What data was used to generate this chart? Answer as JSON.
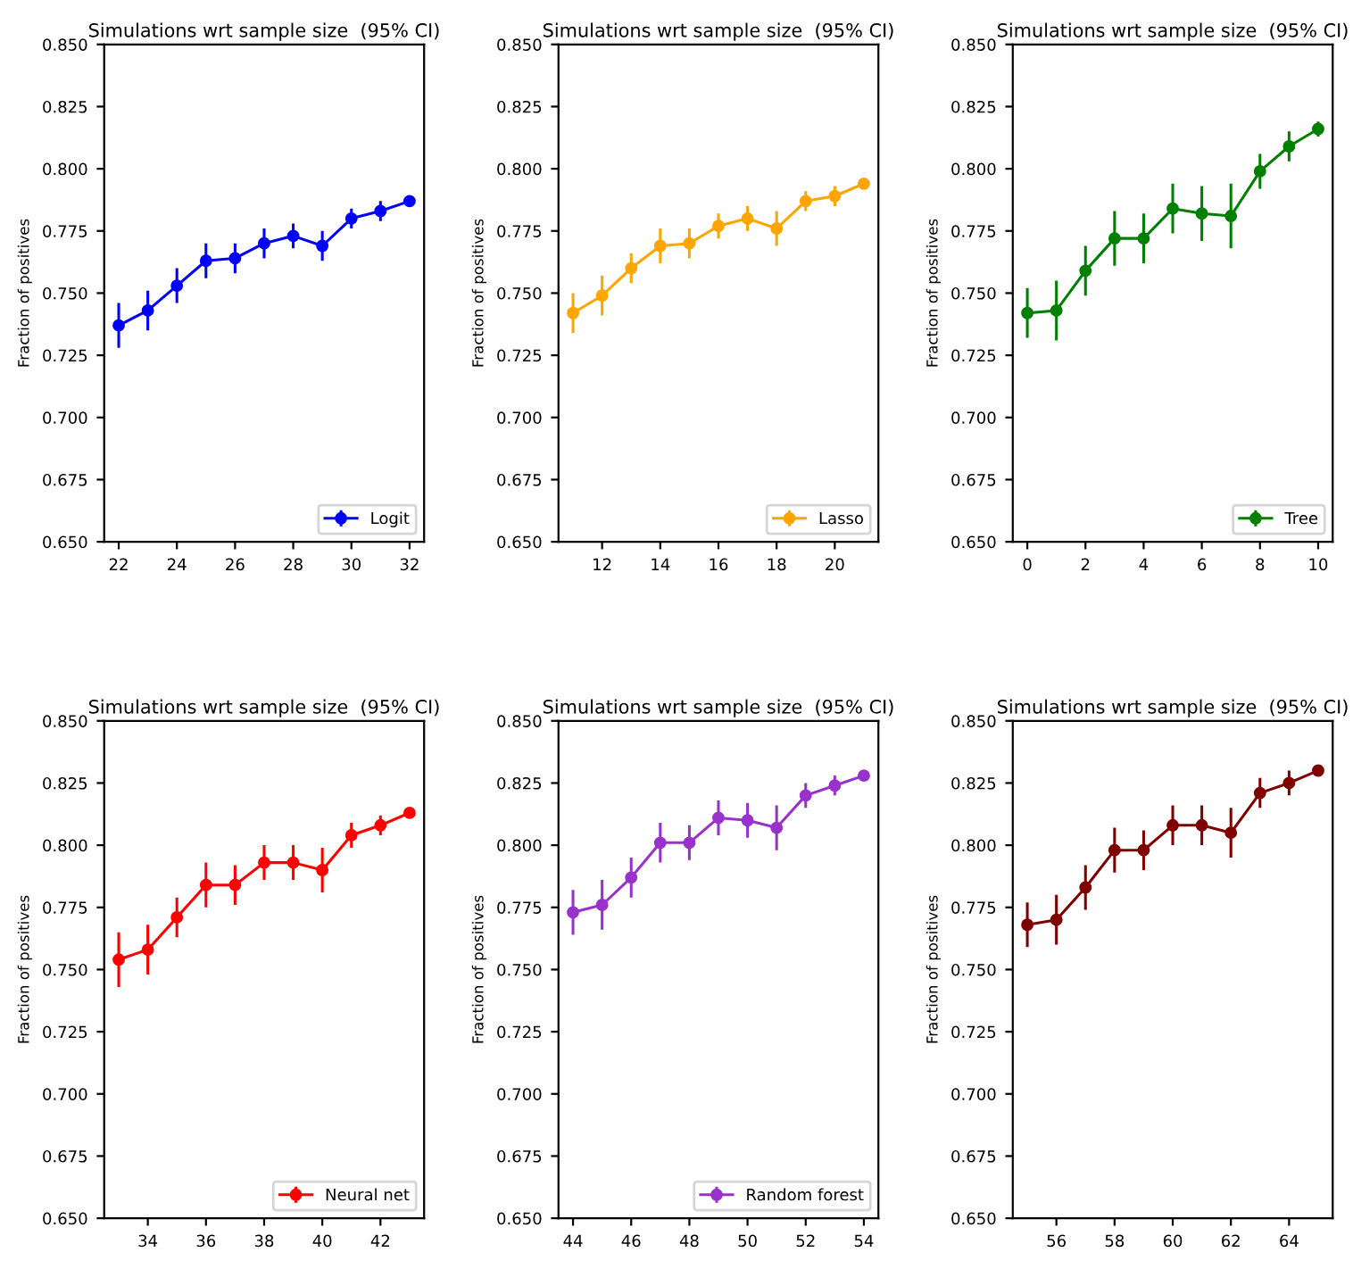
{
  "chart_data": [
    {
      "type": "line",
      "title": "Simulations wrt sample size  (95% CI)",
      "ylabel": "Fraction of positives",
      "x": [
        22,
        23,
        24,
        25,
        26,
        27,
        28,
        29,
        30,
        31,
        32
      ],
      "xlim": [
        21.5,
        32.5
      ],
      "xticks": [
        22,
        24,
        26,
        28,
        30,
        32
      ],
      "ylim": [
        0.65,
        0.85
      ],
      "yticks": [
        {
          "value": 0.65,
          "label": "0.650"
        },
        {
          "value": 0.675,
          "label": "0.675"
        },
        {
          "value": 0.7,
          "label": "0.700"
        },
        {
          "value": 0.725,
          "label": "0.725"
        },
        {
          "value": 0.75,
          "label": "0.750"
        },
        {
          "value": 0.775,
          "label": "0.775"
        },
        {
          "value": 0.8,
          "label": "0.800"
        },
        {
          "value": 0.825,
          "label": "0.825"
        },
        {
          "value": 0.85,
          "label": "0.850"
        }
      ],
      "marker": "circle",
      "legend": "bottom right",
      "grid": false,
      "series": [
        {
          "name": "Logit",
          "color": "#0000ff",
          "values": [
            0.737,
            0.743,
            0.753,
            0.763,
            0.764,
            0.77,
            0.773,
            0.769,
            0.78,
            0.783,
            0.787
          ],
          "errors": [
            0.009,
            0.008,
            0.007,
            0.007,
            0.006,
            0.006,
            0.005,
            0.006,
            0.004,
            0.004,
            0.002
          ]
        }
      ]
    },
    {
      "type": "line",
      "title": "Simulations wrt sample size  (95% CI)",
      "ylabel": "Fraction of positives",
      "x": [
        11,
        12,
        13,
        14,
        15,
        16,
        17,
        18,
        19,
        20,
        21
      ],
      "xlim": [
        10.5,
        21.5
      ],
      "xticks": [
        12,
        14,
        16,
        18,
        20
      ],
      "ylim": [
        0.65,
        0.85
      ],
      "yticks": [
        {
          "value": 0.65,
          "label": "0.650"
        },
        {
          "value": 0.675,
          "label": "0.675"
        },
        {
          "value": 0.7,
          "label": "0.700"
        },
        {
          "value": 0.725,
          "label": "0.725"
        },
        {
          "value": 0.75,
          "label": "0.750"
        },
        {
          "value": 0.775,
          "label": "0.775"
        },
        {
          "value": 0.8,
          "label": "0.800"
        },
        {
          "value": 0.825,
          "label": "0.825"
        },
        {
          "value": 0.85,
          "label": "0.850"
        }
      ],
      "marker": "circle",
      "legend": "bottom right",
      "grid": false,
      "series": [
        {
          "name": "Lasso",
          "color": "#ffa500",
          "values": [
            0.742,
            0.749,
            0.76,
            0.769,
            0.77,
            0.777,
            0.78,
            0.776,
            0.787,
            0.789,
            0.794
          ],
          "errors": [
            0.008,
            0.008,
            0.006,
            0.007,
            0.006,
            0.005,
            0.005,
            0.007,
            0.004,
            0.004,
            0.002
          ]
        }
      ]
    },
    {
      "type": "line",
      "title": "Simulations wrt sample size  (95% CI)",
      "ylabel": "Fraction of positives",
      "x": [
        0,
        1,
        2,
        3,
        4,
        5,
        6,
        7,
        8,
        9,
        10
      ],
      "xlim": [
        -0.5,
        10.5
      ],
      "xticks": [
        0,
        2,
        4,
        6,
        8,
        10
      ],
      "ylim": [
        0.65,
        0.85
      ],
      "yticks": [
        {
          "value": 0.65,
          "label": "0.650"
        },
        {
          "value": 0.675,
          "label": "0.675"
        },
        {
          "value": 0.7,
          "label": "0.700"
        },
        {
          "value": 0.725,
          "label": "0.725"
        },
        {
          "value": 0.75,
          "label": "0.750"
        },
        {
          "value": 0.775,
          "label": "0.775"
        },
        {
          "value": 0.8,
          "label": "0.800"
        },
        {
          "value": 0.825,
          "label": "0.825"
        },
        {
          "value": 0.85,
          "label": "0.850"
        }
      ],
      "marker": "circle",
      "legend": "bottom right",
      "grid": false,
      "series": [
        {
          "name": "Tree",
          "color": "#008000",
          "values": [
            0.742,
            0.743,
            0.759,
            0.772,
            0.772,
            0.784,
            0.782,
            0.781,
            0.799,
            0.809,
            0.816
          ],
          "errors": [
            0.01,
            0.012,
            0.01,
            0.011,
            0.01,
            0.01,
            0.011,
            0.013,
            0.007,
            0.006,
            0.003
          ]
        }
      ]
    },
    {
      "type": "line",
      "title": "Simulations wrt sample size  (95% CI)",
      "ylabel": "Fraction of positives",
      "x": [
        33,
        34,
        35,
        36,
        37,
        38,
        39,
        40,
        41,
        42,
        43
      ],
      "xlim": [
        32.5,
        43.5
      ],
      "xticks": [
        34,
        36,
        38,
        40,
        42
      ],
      "ylim": [
        0.65,
        0.85
      ],
      "yticks": [
        {
          "value": 0.65,
          "label": "0.650"
        },
        {
          "value": 0.675,
          "label": "0.675"
        },
        {
          "value": 0.7,
          "label": "0.700"
        },
        {
          "value": 0.725,
          "label": "0.725"
        },
        {
          "value": 0.75,
          "label": "0.750"
        },
        {
          "value": 0.775,
          "label": "0.775"
        },
        {
          "value": 0.8,
          "label": "0.800"
        },
        {
          "value": 0.825,
          "label": "0.825"
        },
        {
          "value": 0.85,
          "label": "0.850"
        }
      ],
      "marker": "circle",
      "legend": "bottom right",
      "grid": false,
      "series": [
        {
          "name": "Neural net",
          "color": "#ff0000",
          "values": [
            0.754,
            0.758,
            0.771,
            0.784,
            0.784,
            0.793,
            0.793,
            0.79,
            0.804,
            0.808,
            0.813
          ],
          "errors": [
            0.011,
            0.01,
            0.008,
            0.009,
            0.008,
            0.007,
            0.007,
            0.009,
            0.005,
            0.004,
            0.002
          ]
        }
      ]
    },
    {
      "type": "line",
      "title": "Simulations wrt sample size  (95% CI)",
      "ylabel": "Fraction of positives",
      "x": [
        44,
        45,
        46,
        47,
        48,
        49,
        50,
        51,
        52,
        53,
        54
      ],
      "xlim": [
        43.5,
        54.5
      ],
      "xticks": [
        44,
        46,
        48,
        50,
        52,
        54
      ],
      "ylim": [
        0.65,
        0.85
      ],
      "yticks": [
        {
          "value": 0.65,
          "label": "0.650"
        },
        {
          "value": 0.675,
          "label": "0.675"
        },
        {
          "value": 0.7,
          "label": "0.700"
        },
        {
          "value": 0.725,
          "label": "0.725"
        },
        {
          "value": 0.75,
          "label": "0.750"
        },
        {
          "value": 0.775,
          "label": "0.775"
        },
        {
          "value": 0.8,
          "label": "0.800"
        },
        {
          "value": 0.825,
          "label": "0.825"
        },
        {
          "value": 0.85,
          "label": "0.850"
        }
      ],
      "marker": "circle",
      "legend": "bottom right",
      "grid": false,
      "series": [
        {
          "name": "Random forest",
          "color": "#9932cc",
          "values": [
            0.773,
            0.776,
            0.787,
            0.801,
            0.801,
            0.811,
            0.81,
            0.807,
            0.82,
            0.824,
            0.828
          ],
          "errors": [
            0.009,
            0.01,
            0.008,
            0.008,
            0.007,
            0.007,
            0.007,
            0.009,
            0.005,
            0.004,
            0.002
          ]
        }
      ]
    },
    {
      "type": "line",
      "title": "Simulations wrt sample size  (95% CI)",
      "ylabel": "Fraction of positives",
      "x": [
        55,
        56,
        57,
        58,
        59,
        60,
        61,
        62,
        63,
        64,
        65
      ],
      "xlim": [
        54.5,
        65.5
      ],
      "xticks": [
        56,
        58,
        60,
        62,
        64
      ],
      "ylim": [
        0.65,
        0.85
      ],
      "yticks": [
        {
          "value": 0.65,
          "label": "0.650"
        },
        {
          "value": 0.675,
          "label": "0.675"
        },
        {
          "value": 0.7,
          "label": "0.700"
        },
        {
          "value": 0.725,
          "label": "0.725"
        },
        {
          "value": 0.75,
          "label": "0.750"
        },
        {
          "value": 0.775,
          "label": "0.775"
        },
        {
          "value": 0.8,
          "label": "0.800"
        },
        {
          "value": 0.825,
          "label": "0.825"
        },
        {
          "value": 0.85,
          "label": "0.850"
        }
      ],
      "marker": "circle",
      "grid": false,
      "series": [
        {
          "color": "#800000",
          "values": [
            0.768,
            0.77,
            0.783,
            0.798,
            0.798,
            0.808,
            0.808,
            0.805,
            0.821,
            0.825,
            0.83
          ],
          "errors": [
            0.009,
            0.01,
            0.009,
            0.009,
            0.008,
            0.008,
            0.008,
            0.01,
            0.006,
            0.005,
            0.002
          ]
        }
      ]
    }
  ]
}
